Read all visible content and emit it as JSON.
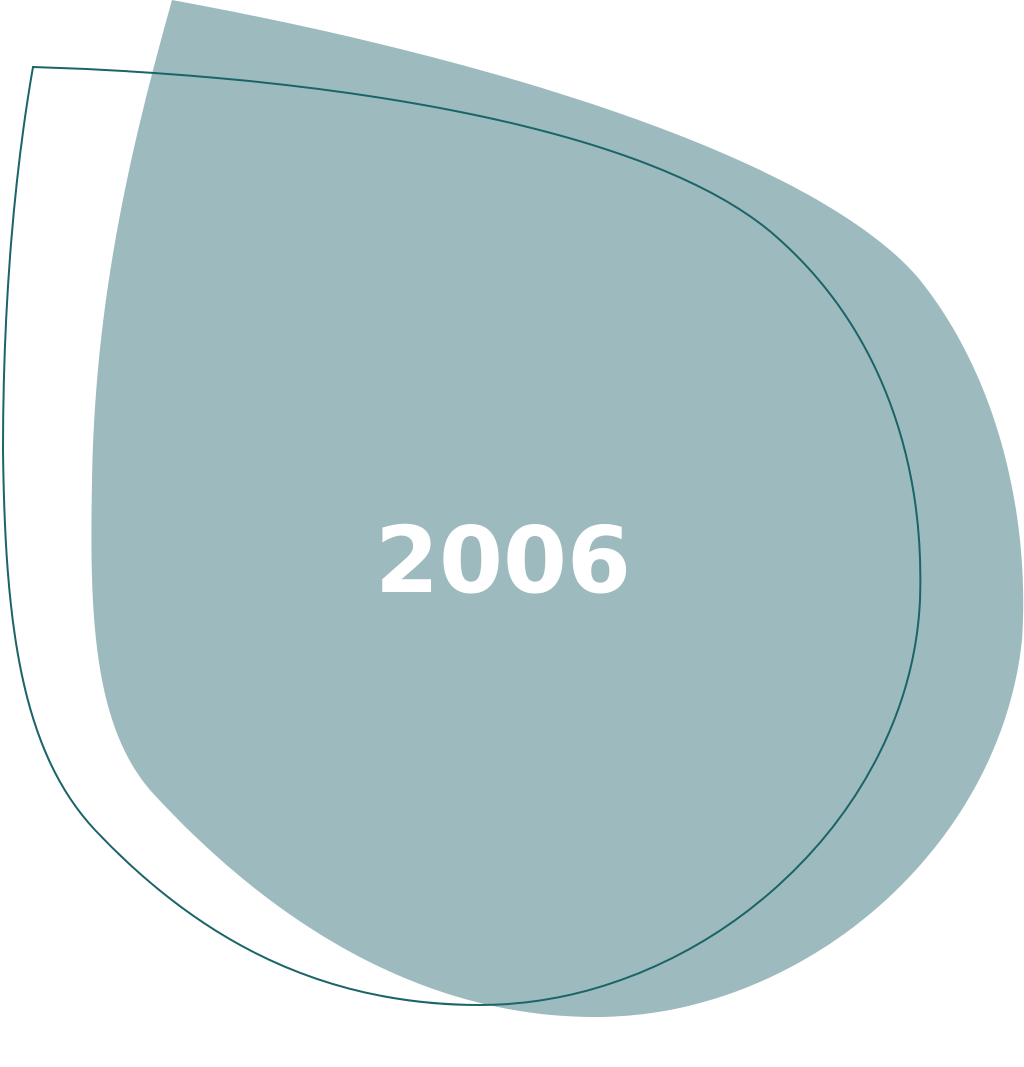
{
  "label": "2006",
  "colors": {
    "fill": "#9DBBBF",
    "outline": "#1B6468",
    "text": "#FFFFFF"
  }
}
